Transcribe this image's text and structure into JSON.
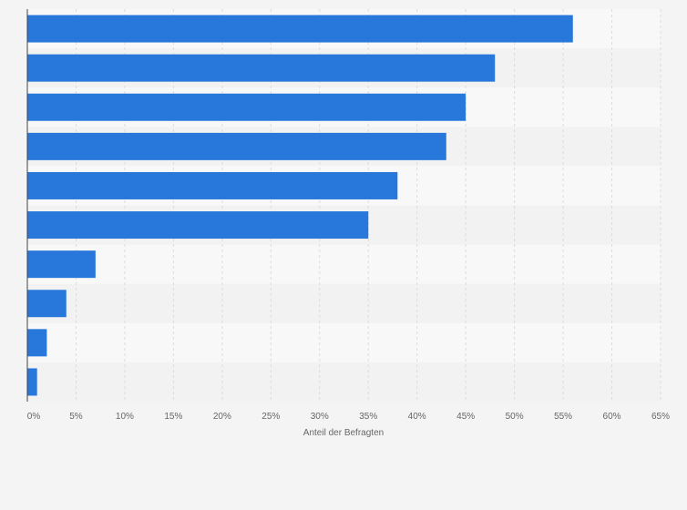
{
  "colors": {
    "bar": "#2878dc",
    "page_background": "#f4f4f4",
    "band_light": "#f8f8f8",
    "band_dark": "#f2f2f2",
    "grid": "#dcdcdc",
    "axis": "#444444"
  },
  "chart_data": {
    "type": "bar",
    "orientation": "horizontal",
    "categories": [
      "",
      "",
      "",
      "",
      "",
      "",
      "",
      "",
      "",
      ""
    ],
    "values": [
      56,
      48,
      45,
      43,
      38,
      35,
      7,
      4,
      2,
      1
    ],
    "value_unit": "%",
    "xlabel": "Anteil der Befragten",
    "xlim": [
      0,
      65
    ],
    "x_ticks": [
      "0%",
      "5%",
      "10%",
      "15%",
      "20%",
      "25%",
      "30%",
      "35%",
      "40%",
      "45%",
      "50%",
      "55%",
      "60%",
      "65%"
    ],
    "grid": true,
    "grid_style": "dashed vertical",
    "legend": "none"
  }
}
